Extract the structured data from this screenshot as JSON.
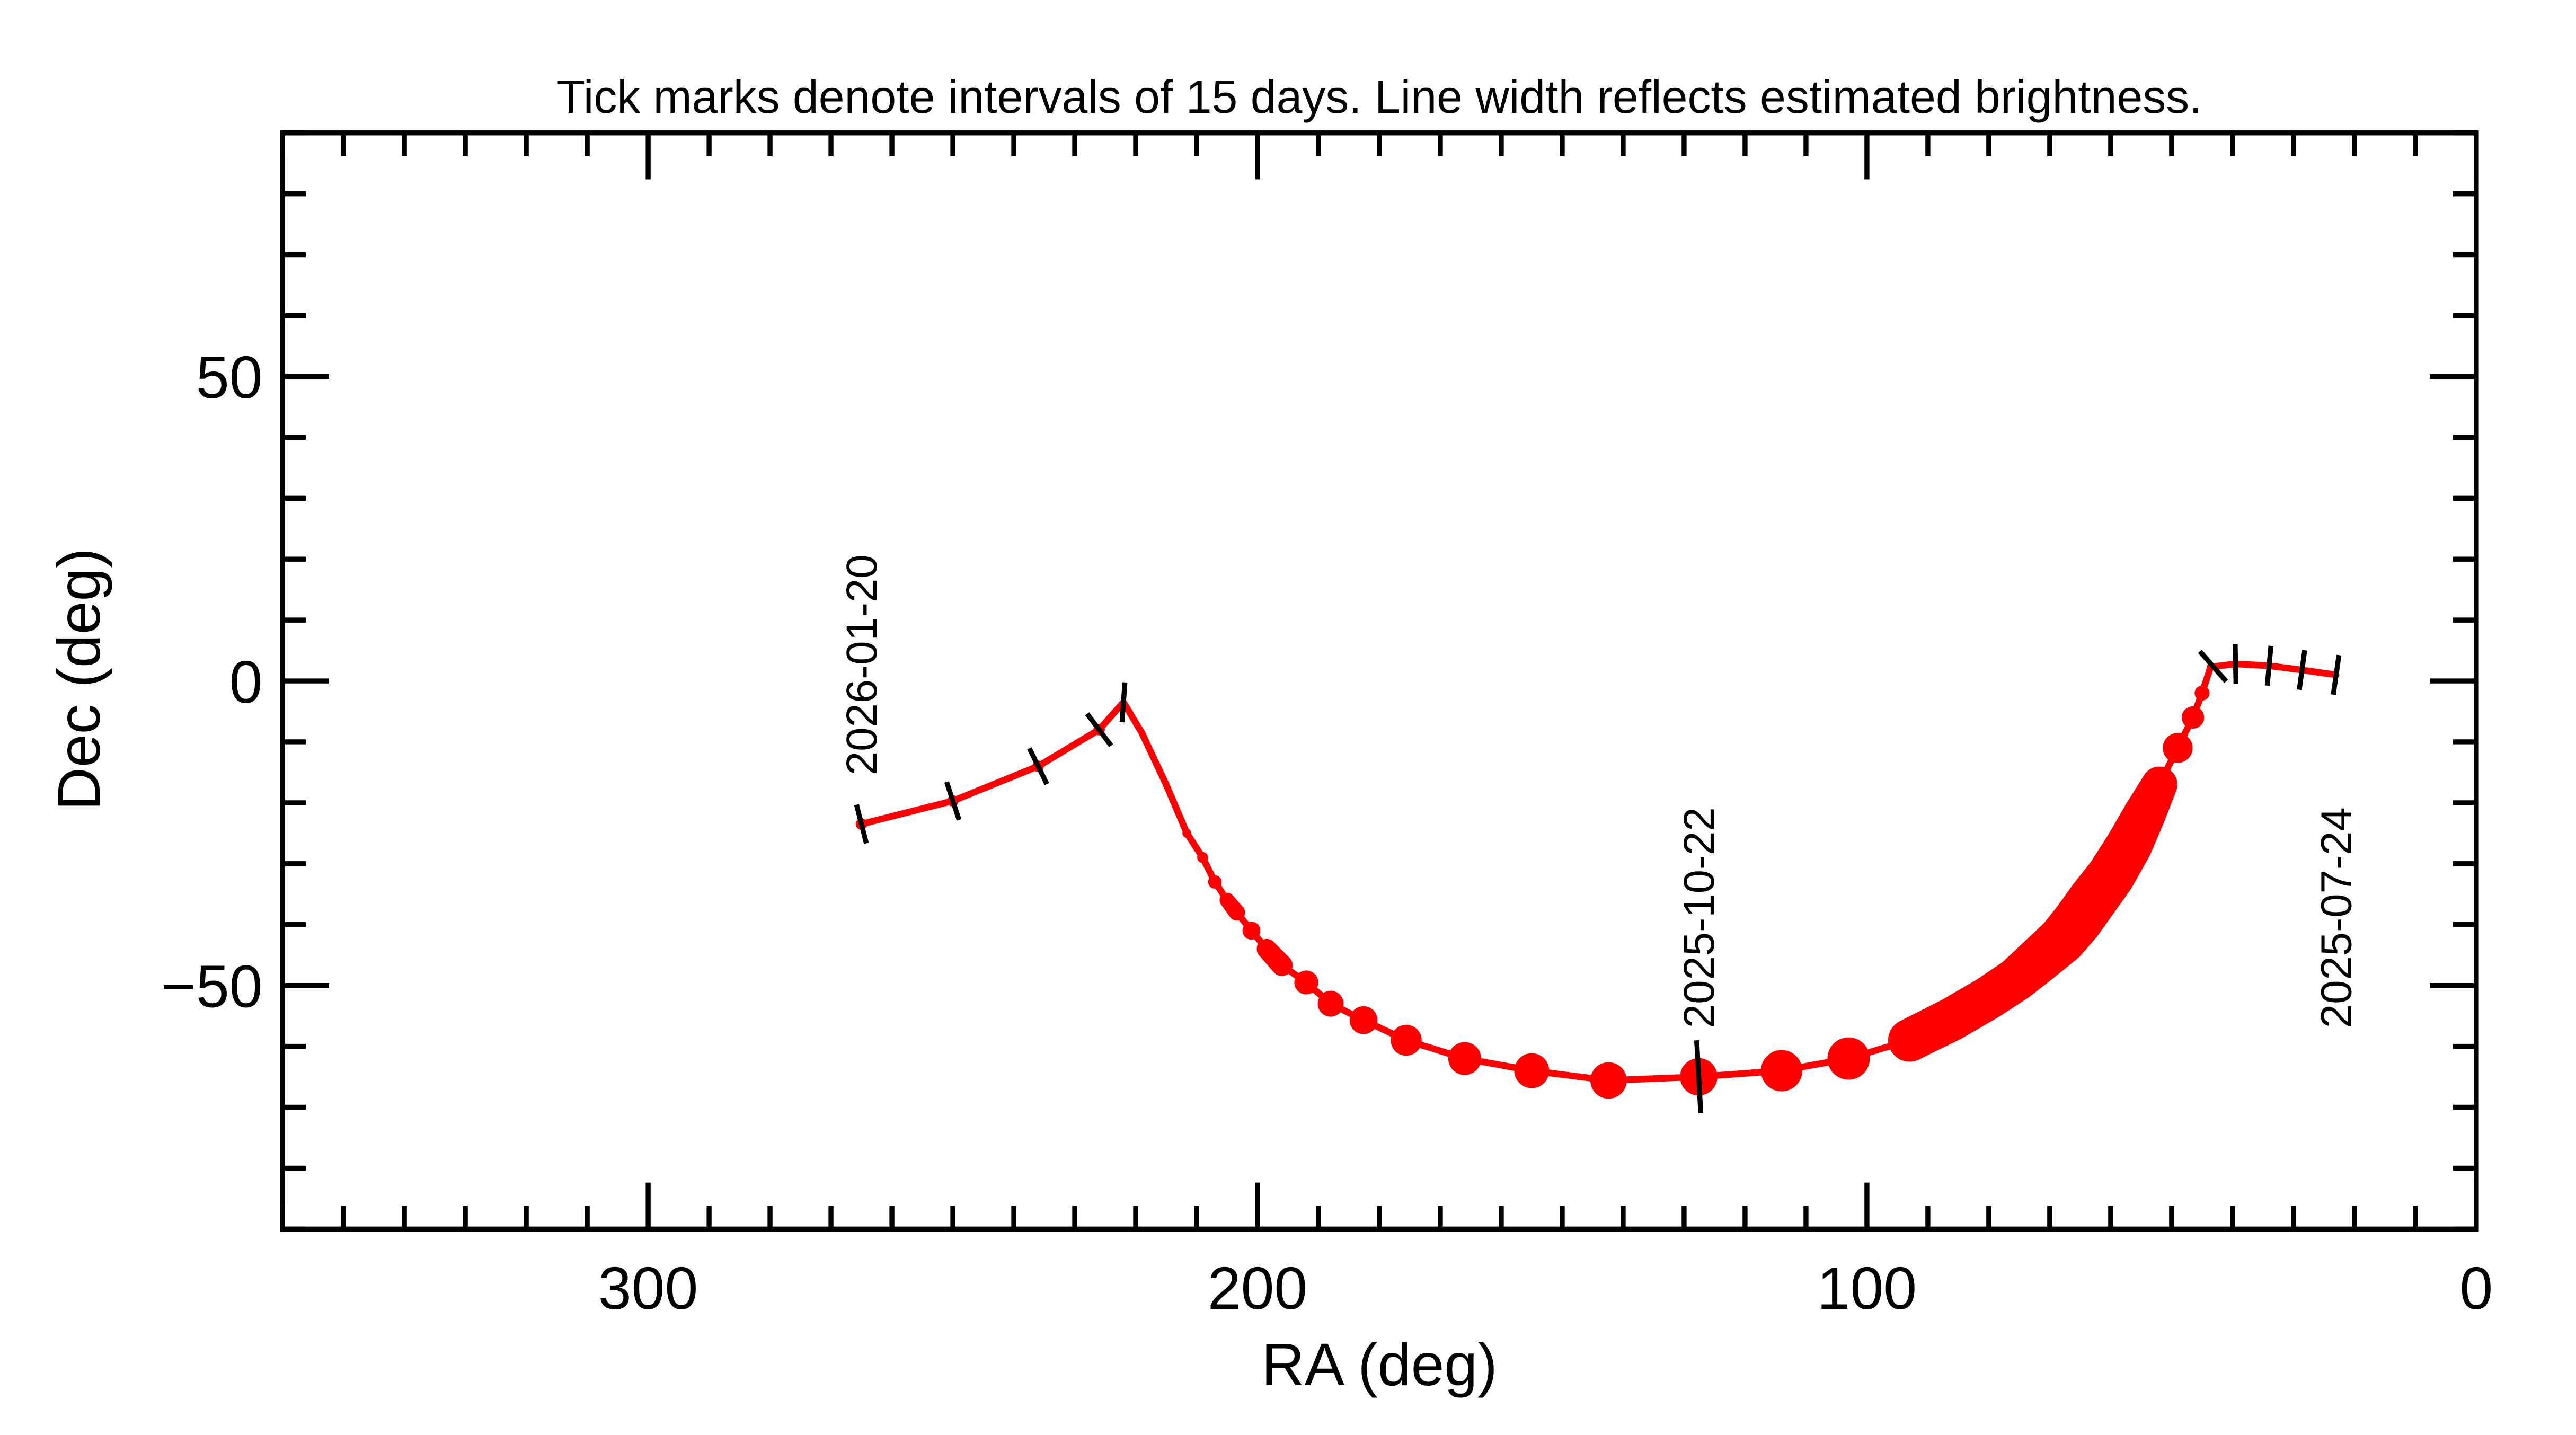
{
  "chart_data": {
    "type": "line",
    "title": "Tick marks denote intervals of 15 days.  Line width reflects estimated brightness.",
    "xlabel": "RA (deg)",
    "ylabel": "Dec (deg)",
    "xlim": [
      360,
      0
    ],
    "ylim": [
      -90,
      90
    ],
    "x_major_ticks": [
      300,
      200,
      100,
      0
    ],
    "x_tick_labels": [
      "300",
      "200",
      "100",
      "0"
    ],
    "x_minor_step": 10,
    "y_major_ticks": [
      50,
      0,
      -50
    ],
    "y_tick_labels": [
      "50",
      "0",
      "−50"
    ],
    "y_minor_step": 10,
    "grid": false,
    "track_color": "#ff0000",
    "tick_color": "#000000",
    "track": [
      {
        "ra": 23,
        "dec": 1,
        "w": 0.13
      },
      {
        "ra": 28.6,
        "dec": 1.8,
        "w": 0.13
      },
      {
        "ra": 34,
        "dec": 2.5,
        "w": 0.13
      },
      {
        "ra": 39.5,
        "dec": 2.8,
        "w": 0.13
      },
      {
        "ra": 43.6,
        "dec": 2.3,
        "w": 0.15
      },
      {
        "ra": 45,
        "dec": -2,
        "w": 0.3
      },
      {
        "ra": 46.5,
        "dec": -6,
        "w": 0.45
      },
      {
        "ra": 49,
        "dec": -11,
        "w": 0.6
      },
      {
        "ra": 52,
        "dec": -17,
        "w": 0.72
      },
      {
        "ra": 54.5,
        "dec": -22,
        "w": 0.85
      },
      {
        "ra": 57,
        "dec": -27,
        "w": 0.93
      },
      {
        "ra": 60,
        "dec": -32,
        "w": 0.97
      },
      {
        "ra": 63,
        "dec": -36,
        "w": 1.0
      },
      {
        "ra": 65.5,
        "dec": -39.5,
        "w": 1.0
      },
      {
        "ra": 68,
        "dec": -42.5,
        "w": 0.98
      },
      {
        "ra": 72,
        "dec": -46,
        "w": 0.93
      },
      {
        "ra": 75.5,
        "dec": -49,
        "w": 0.88
      },
      {
        "ra": 80,
        "dec": -52,
        "w": 0.87
      },
      {
        "ra": 86,
        "dec": -55.5,
        "w": 0.87
      },
      {
        "ra": 93,
        "dec": -59,
        "w": 0.86
      },
      {
        "ra": 103,
        "dec": -62,
        "w": 0.85
      },
      {
        "ra": 114,
        "dec": -64,
        "w": 0.83
      },
      {
        "ra": 127.6,
        "dec": -65,
        "w": 0.75
      },
      {
        "ra": 142.4,
        "dec": -65.6,
        "w": 0.73
      },
      {
        "ra": 155,
        "dec": -64,
        "w": 0.7
      },
      {
        "ra": 166,
        "dec": -62,
        "w": 0.66
      },
      {
        "ra": 175.6,
        "dec": -59,
        "w": 0.62
      },
      {
        "ra": 182.6,
        "dec": -55.7,
        "w": 0.56
      },
      {
        "ra": 188,
        "dec": -53,
        "w": 0.52
      },
      {
        "ra": 192,
        "dec": -49.5,
        "w": 0.48
      },
      {
        "ra": 196,
        "dec": -46.7,
        "w": 0.43
      },
      {
        "ra": 198.5,
        "dec": -44,
        "w": 0.4
      },
      {
        "ra": 201,
        "dec": -41,
        "w": 0.36
      },
      {
        "ra": 203.4,
        "dec": -38,
        "w": 0.33
      },
      {
        "ra": 205,
        "dec": -36,
        "w": 0.3
      },
      {
        "ra": 207,
        "dec": -33,
        "w": 0.27
      },
      {
        "ra": 209,
        "dec": -29,
        "w": 0.22
      },
      {
        "ra": 211.6,
        "dec": -25,
        "w": 0.18
      },
      {
        "ra": 215,
        "dec": -17,
        "w": 0.14
      },
      {
        "ra": 219,
        "dec": -8.5,
        "w": 0.13
      },
      {
        "ra": 222,
        "dec": -3.5,
        "w": 0.13
      },
      {
        "ra": 226,
        "dec": -8,
        "w": 0.23
      },
      {
        "ra": 236,
        "dec": -14,
        "w": 0.23
      },
      {
        "ra": 250,
        "dec": -19.7,
        "w": 0.23
      },
      {
        "ra": 265,
        "dec": -23.5,
        "w": 0.23
      }
    ],
    "interval_ticks": [
      {
        "ra": 23,
        "dec": 1
      },
      {
        "ra": 28.6,
        "dec": 1.8
      },
      {
        "ra": 34,
        "dec": 2.5
      },
      {
        "ra": 39.5,
        "dec": 2.8
      },
      {
        "ra": 43.2,
        "dec": 2.4
      },
      {
        "ra": 127.6,
        "dec": -65,
        "long": true
      },
      {
        "ra": 222,
        "dec": -3.5
      },
      {
        "ra": 226,
        "dec": -8
      },
      {
        "ra": 236,
        "dec": -14
      },
      {
        "ra": 250,
        "dec": -19.7
      },
      {
        "ra": 265,
        "dec": -23.5
      }
    ],
    "annotations": [
      {
        "text": "2025-07-24",
        "ra": 23,
        "dec": -57
      },
      {
        "text": "2025-10-22",
        "ra": 127.6,
        "dec": -57
      },
      {
        "text": "2026-01-20",
        "ra": 265,
        "dec": -15.5
      }
    ]
  }
}
